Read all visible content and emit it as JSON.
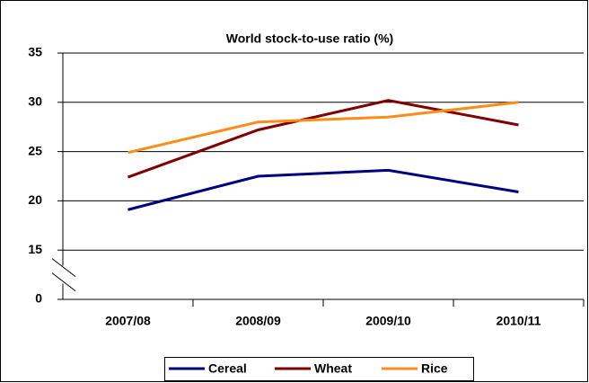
{
  "chart_data": {
    "type": "line",
    "title": "World stock-to-use ratio (%)",
    "categories": [
      "2007/08",
      "2008/09",
      "2009/10",
      "2010/11"
    ],
    "series": [
      {
        "name": "Cereal",
        "color": "#000080",
        "values": [
          19.1,
          22.5,
          23.1,
          20.9
        ]
      },
      {
        "name": "Wheat",
        "color": "#800000",
        "values": [
          22.4,
          27.2,
          30.2,
          27.7
        ]
      },
      {
        "name": "Rice",
        "color": "#ff8c1a",
        "values": [
          24.9,
          28.0,
          28.5,
          30.0
        ]
      }
    ],
    "ylim": [
      0,
      35
    ],
    "yticks": [
      0,
      15,
      20,
      25,
      30,
      35
    ],
    "ybreak": [
      0,
      15
    ],
    "grid": true,
    "legend": "bottom"
  }
}
